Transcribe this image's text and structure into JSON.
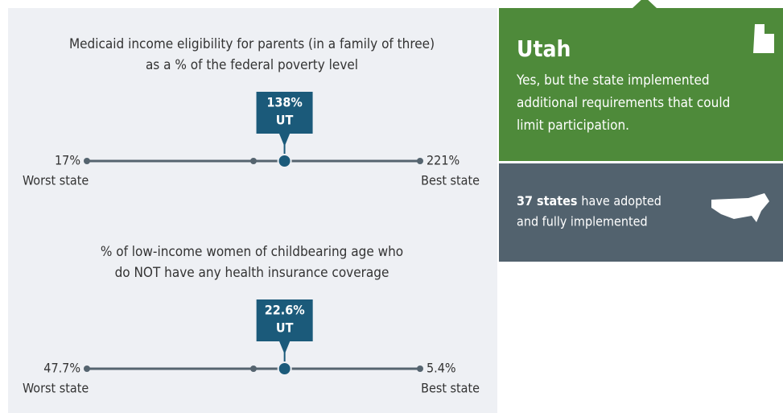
{
  "charts": [
    {
      "type": "dot-scale",
      "title_lines": [
        "Medicaid income eligibility for parents (in a family of three)",
        "as a % of the federal poverty level"
      ],
      "xlim": [
        17,
        221
      ],
      "xlim_labels": [
        "17%",
        "221%"
      ],
      "captions": [
        "Worst state",
        "Best state"
      ],
      "marker": {
        "value": 138,
        "value_label": "138%",
        "label": "UT"
      }
    },
    {
      "type": "dot-scale",
      "title_lines": [
        "% of low-income women of childbearing age who",
        "do NOT have any health insurance coverage"
      ],
      "xlim": [
        47.7,
        5.4
      ],
      "xlim_labels": [
        "47.7%",
        "5.4%"
      ],
      "captions": [
        "Worst state",
        "Best state"
      ],
      "marker": {
        "value": 22.6,
        "value_label": "22.6%",
        "label": "UT"
      }
    }
  ],
  "state_panel": {
    "state": "Utah",
    "lines": [
      "Yes, but the state implemented",
      "additional requirements that could",
      "limit participation."
    ]
  },
  "summary_panel": {
    "bold": "37 states",
    "lines": [
      "have adopted",
      "and fully implemented"
    ]
  }
}
